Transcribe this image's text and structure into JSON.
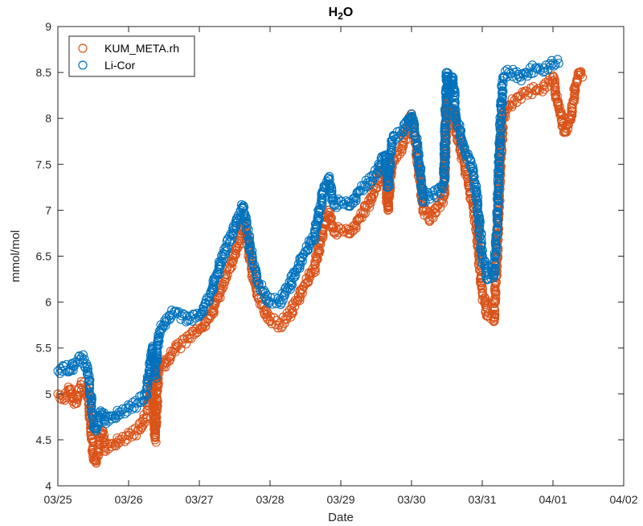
{
  "chart_data": {
    "type": "scatter",
    "title": "H",
    "title_subscript": "2",
    "title_suffix": "O",
    "xlabel": "Date",
    "ylabel": "mmol/mol",
    "xlim": [
      "03/25",
      "04/02"
    ],
    "ylim": [
      4,
      9
    ],
    "x_ticks": [
      "03/25",
      "03/26",
      "03/27",
      "03/28",
      "03/29",
      "03/30",
      "03/31",
      "04/01",
      "04/02"
    ],
    "y_ticks": [
      "4",
      "4.5",
      "5",
      "5.5",
      "6",
      "6.5",
      "7",
      "7.5",
      "8",
      "8.5",
      "9"
    ],
    "grid": false,
    "legend_position": "top-left",
    "marker": "open-circle",
    "series": [
      {
        "name": "KUM_META.rh",
        "color": "#D95319",
        "x": [
          "03/25 00:00",
          "03/25 02:00",
          "03/25 04:00",
          "03/25 06:00",
          "03/25 08:00",
          "03/25 10:00",
          "03/25 12:00",
          "03/25 13:00",
          "03/25 14:00",
          "03/25 15:00",
          "03/25 16:00",
          "03/26 00:00",
          "03/26 03:00",
          "03/26 06:00",
          "03/26 08:00",
          "03/26 09:00",
          "03/26 10:00",
          "03/26 11:00",
          "03/26 12:00",
          "03/26 14:00",
          "03/26 16:00",
          "03/26 18:00",
          "03/26 20:00",
          "03/27 00:00",
          "03/27 04:00",
          "03/27 08:00",
          "03/27 12:00",
          "03/27 14:00",
          "03/27 15:00",
          "03/27 16:00",
          "03/27 18:00",
          "03/27 20:00",
          "03/28 00:00",
          "03/28 03:00",
          "03/28 06:00",
          "03/28 09:00",
          "03/28 12:00",
          "03/28 15:00",
          "03/28 18:00",
          "03/28 20:00",
          "03/28 21:00",
          "03/28 22:00",
          "03/29 00:00",
          "03/29 03:00",
          "03/29 06:00",
          "03/29 09:00",
          "03/29 12:00",
          "03/29 15:00",
          "03/29 16:00",
          "03/29 17:00",
          "03/29 18:00",
          "03/29 21:00",
          "03/30 00:00",
          "03/30 02:00",
          "03/30 04:00",
          "03/30 06:00",
          "03/30 09:00",
          "03/30 11:00",
          "03/30 12:00",
          "03/30 13:00",
          "03/30 14:00",
          "03/30 15:00",
          "03/30 18:00",
          "03/30 20:00",
          "03/30 22:00",
          "03/31 00:00",
          "03/31 02:00",
          "03/31 04:00",
          "03/31 05:00",
          "03/31 06:00",
          "03/31 07:00",
          "03/31 09:00",
          "03/31 11:00",
          "03/31 13:00",
          "03/31 15:00",
          "03/31 18:00",
          "03/31 21:00",
          "04/01 00:00",
          "04/01 02:00",
          "04/01 04:00",
          "04/01 06:00",
          "04/01 07:00",
          "04/01 08:00",
          "04/01 09:00",
          "04/01 10:00"
        ],
        "y": [
          5.0,
          4.95,
          5.05,
          4.9,
          5.1,
          5.05,
          4.35,
          4.25,
          4.45,
          4.6,
          4.4,
          4.55,
          4.6,
          4.75,
          5.15,
          4.5,
          5.25,
          5.35,
          5.3,
          5.4,
          5.5,
          5.55,
          5.6,
          5.7,
          5.85,
          6.2,
          6.5,
          6.75,
          6.85,
          6.75,
          6.3,
          6.05,
          5.8,
          5.75,
          5.85,
          6.0,
          6.2,
          6.35,
          6.8,
          7.0,
          6.85,
          6.75,
          6.8,
          6.75,
          6.9,
          7.05,
          7.25,
          7.5,
          7.0,
          7.4,
          7.55,
          7.7,
          8.05,
          7.6,
          7.0,
          6.9,
          7.05,
          7.15,
          8.2,
          7.95,
          8.1,
          7.9,
          7.5,
          7.2,
          6.85,
          6.1,
          5.85,
          5.8,
          6.5,
          7.4,
          8.0,
          8.15,
          8.2,
          8.25,
          8.3,
          8.3,
          8.35,
          8.45,
          8.1,
          7.85,
          8.0,
          8.2,
          8.4,
          8.5,
          8.45
        ]
      },
      {
        "name": "Li-Cor",
        "color": "#0072BD",
        "x": [
          "03/25 00:00",
          "03/25 02:00",
          "03/25 04:00",
          "03/25 06:00",
          "03/25 08:00",
          "03/25 10:00",
          "03/25 12:00",
          "03/25 13:00",
          "03/25 14:00",
          "03/25 15:00",
          "03/25 16:00",
          "03/26 00:00",
          "03/26 03:00",
          "03/26 06:00",
          "03/26 08:00",
          "03/26 09:00",
          "03/26 10:00",
          "03/26 11:00",
          "03/26 12:00",
          "03/26 14:00",
          "03/26 16:00",
          "03/26 18:00",
          "03/26 20:00",
          "03/27 00:00",
          "03/27 04:00",
          "03/27 08:00",
          "03/27 12:00",
          "03/27 14:00",
          "03/27 15:00",
          "03/27 16:00",
          "03/27 18:00",
          "03/27 20:00",
          "03/28 00:00",
          "03/28 03:00",
          "03/28 06:00",
          "03/28 09:00",
          "03/28 12:00",
          "03/28 15:00",
          "03/28 18:00",
          "03/28 20:00",
          "03/28 21:00",
          "03/28 22:00",
          "03/29 00:00",
          "03/29 03:00",
          "03/29 06:00",
          "03/29 09:00",
          "03/29 12:00",
          "03/29 15:00",
          "03/29 16:00",
          "03/29 17:00",
          "03/29 18:00",
          "03/29 21:00",
          "03/30 00:00",
          "03/30 02:00",
          "03/30 04:00",
          "03/30 06:00",
          "03/30 09:00",
          "03/30 11:00",
          "03/30 12:00",
          "03/30 13:00",
          "03/30 14:00",
          "03/30 15:00",
          "03/30 18:00",
          "03/30 20:00",
          "03/30 22:00",
          "03/31 00:00",
          "03/31 02:00",
          "03/31 04:00",
          "03/31 05:00",
          "03/31 06:00",
          "03/31 07:00",
          "03/31 09:00",
          "03/31 11:00",
          "03/31 13:00",
          "03/31 15:00",
          "03/31 18:00",
          "03/31 21:00",
          "04/01 00:00",
          "04/01 02:00"
        ],
        "y": [
          5.25,
          5.3,
          5.25,
          5.35,
          5.4,
          5.3,
          4.7,
          4.6,
          4.75,
          4.8,
          4.7,
          4.85,
          4.9,
          5.0,
          5.5,
          5.2,
          5.6,
          5.7,
          5.75,
          5.85,
          5.9,
          5.85,
          5.8,
          5.85,
          6.1,
          6.5,
          6.8,
          7.0,
          7.05,
          6.85,
          6.45,
          6.2,
          6.0,
          6.0,
          6.15,
          6.35,
          6.55,
          6.7,
          7.2,
          7.35,
          7.15,
          7.05,
          7.1,
          7.05,
          7.2,
          7.3,
          7.4,
          7.6,
          7.25,
          7.65,
          7.8,
          7.85,
          8.05,
          7.7,
          7.1,
          7.15,
          7.2,
          7.3,
          8.5,
          8.3,
          8.45,
          8.05,
          7.65,
          7.55,
          7.2,
          6.5,
          6.25,
          6.3,
          6.8,
          7.8,
          8.45,
          8.5,
          8.5,
          8.45,
          8.5,
          8.55,
          8.55,
          8.6,
          8.6
        ]
      }
    ]
  }
}
